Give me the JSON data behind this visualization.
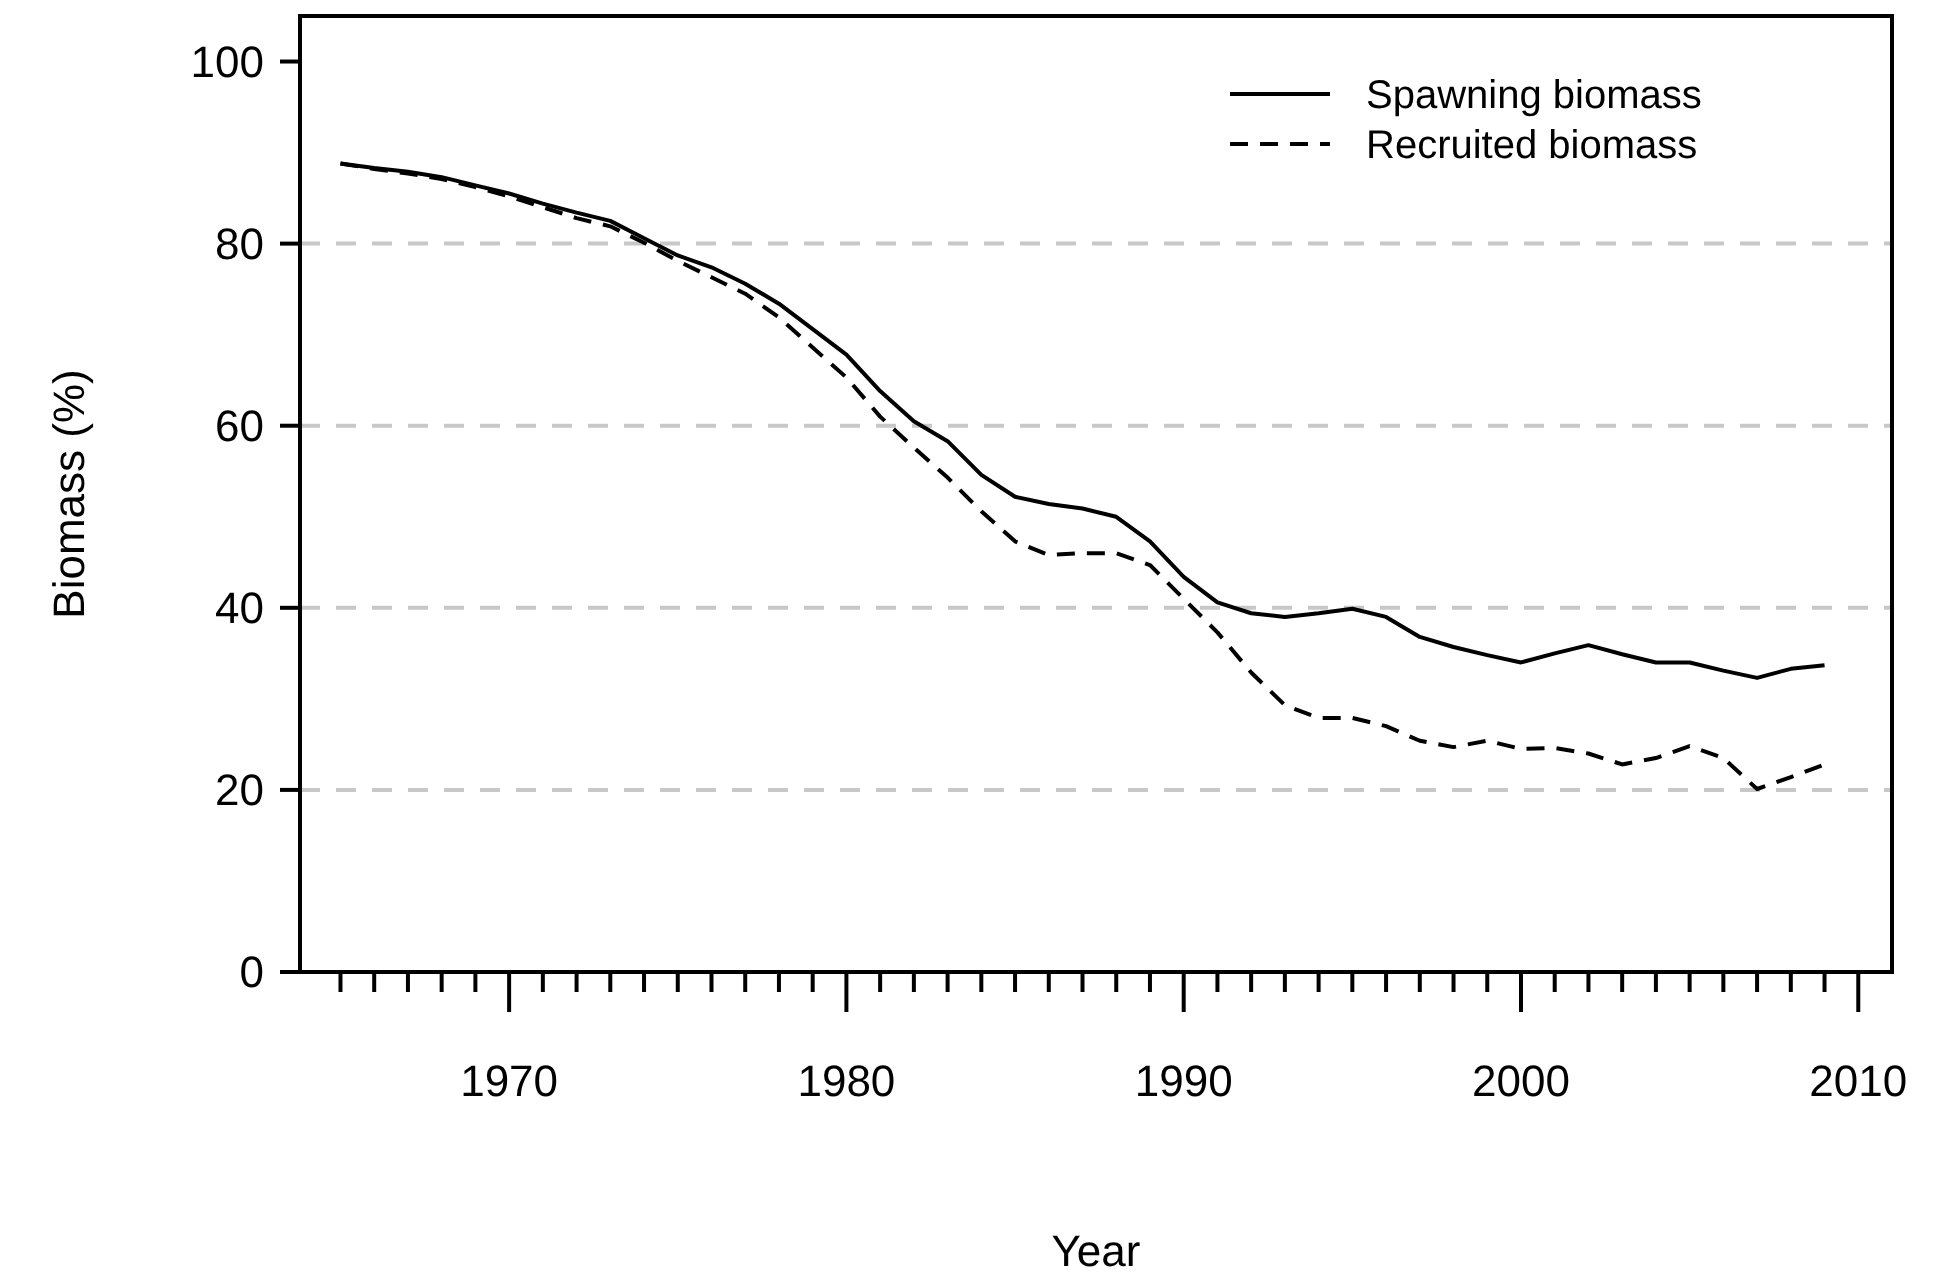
{
  "chart_data": {
    "type": "line",
    "xlabel": "Year",
    "ylabel": "Biomass (%)",
    "x": [
      1965,
      1966,
      1967,
      1968,
      1969,
      1970,
      1971,
      1972,
      1973,
      1974,
      1975,
      1976,
      1977,
      1978,
      1979,
      1980,
      1981,
      1982,
      1983,
      1984,
      1985,
      1986,
      1987,
      1988,
      1989,
      1990,
      1991,
      1992,
      1993,
      1994,
      1995,
      1996,
      1997,
      1998,
      1999,
      2000,
      2001,
      2002,
      2003,
      2004,
      2005,
      2006,
      2007,
      2008,
      2009
    ],
    "series": [
      {
        "name": "Spawning biomass",
        "color": "#000000",
        "line_style": "solid",
        "values": [
          88.8,
          88.3,
          87.9,
          87.3,
          86.4,
          85.5,
          84.4,
          83.4,
          82.5,
          80.6,
          78.7,
          77.4,
          75.6,
          73.4,
          70.6,
          67.8,
          63.8,
          60.5,
          58.3,
          54.6,
          52.2,
          51.4,
          50.9,
          50.0,
          47.3,
          43.4,
          40.6,
          39.4,
          39.0,
          39.4,
          39.9,
          39.0,
          36.8,
          35.7,
          34.8,
          34.0,
          35.0,
          35.9,
          34.9,
          34.0,
          34.0,
          33.1,
          32.3,
          33.3,
          33.7
        ]
      },
      {
        "name": "Recruited biomass",
        "color": "#000000",
        "line_style": "dashed",
        "values": [
          88.8,
          88.2,
          87.7,
          87.1,
          86.2,
          85.2,
          84.0,
          82.8,
          81.9,
          80.1,
          78.1,
          76.3,
          74.5,
          71.9,
          68.6,
          65.3,
          61.0,
          57.6,
          54.3,
          50.6,
          47.3,
          45.8,
          46.0,
          46.0,
          44.7,
          41.0,
          37.3,
          32.9,
          29.3,
          27.9,
          27.9,
          27.0,
          25.4,
          24.7,
          25.4,
          24.5,
          24.6,
          24.0,
          22.8,
          23.5,
          24.8,
          23.5,
          20.1,
          21.4,
          22.8
        ]
      }
    ],
    "xlim": [
      1963.8,
      2011
    ],
    "xticks": [
      {
        "value": 1965,
        "label": null
      },
      {
        "value": 1966,
        "label": null
      },
      {
        "value": 1967,
        "label": null
      },
      {
        "value": 1968,
        "label": null
      },
      {
        "value": 1969,
        "label": null
      },
      1970,
      {
        "value": 1971,
        "label": null
      },
      {
        "value": 1972,
        "label": null
      },
      {
        "value": 1973,
        "label": null
      },
      {
        "value": 1974,
        "label": null
      },
      {
        "value": 1975,
        "label": null
      },
      {
        "value": 1976,
        "label": null
      },
      {
        "value": 1977,
        "label": null
      },
      {
        "value": 1978,
        "label": null
      },
      {
        "value": 1979,
        "label": null
      },
      1980,
      {
        "value": 1981,
        "label": null
      },
      {
        "value": 1982,
        "label": null
      },
      {
        "value": 1983,
        "label": null
      },
      {
        "value": 1984,
        "label": null
      },
      {
        "value": 1985,
        "label": null
      },
      {
        "value": 1986,
        "label": null
      },
      {
        "value": 1987,
        "label": null
      },
      {
        "value": 1988,
        "label": null
      },
      {
        "value": 1989,
        "label": null
      },
      1990,
      {
        "value": 1991,
        "label": null
      },
      {
        "value": 1992,
        "label": null
      },
      {
        "value": 1993,
        "label": null
      },
      {
        "value": 1994,
        "label": null
      },
      {
        "value": 1995,
        "label": null
      },
      {
        "value": 1996,
        "label": null
      },
      {
        "value": 1997,
        "label": null
      },
      {
        "value": 1998,
        "label": null
      },
      {
        "value": 1999,
        "label": null
      },
      2000,
      {
        "value": 2001,
        "label": null
      },
      {
        "value": 2002,
        "label": null
      },
      {
        "value": 2003,
        "label": null
      },
      {
        "value": 2004,
        "label": null
      },
      {
        "value": 2005,
        "label": null
      },
      {
        "value": 2006,
        "label": null
      },
      {
        "value": 2007,
        "label": null
      },
      {
        "value": 2008,
        "label": null
      },
      {
        "value": 2009,
        "label": null
      },
      2010
    ],
    "ylim": [
      0,
      105
    ],
    "yticks": [
      0,
      20,
      40,
      60,
      80,
      100
    ],
    "grid": "y",
    "legend": "top right",
    "marker": "none"
  }
}
